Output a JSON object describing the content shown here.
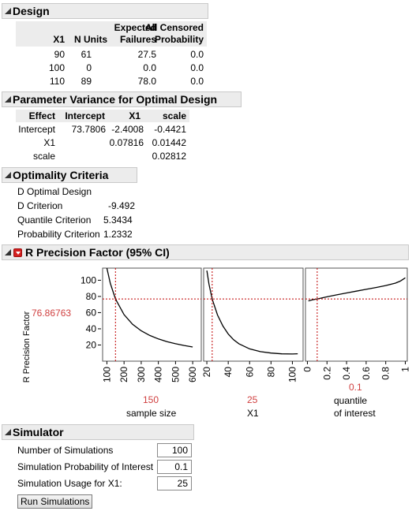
{
  "design": {
    "title": "Design",
    "columns": [
      "X1",
      "N Units",
      "Expected\nFailures",
      "All Censored\nProbability"
    ],
    "col_line1": [
      "",
      "",
      "Expected",
      "All Censored"
    ],
    "col_line2": [
      "X1",
      "N Units",
      "Failures",
      "Probability"
    ],
    "rows": [
      [
        "90",
        "61",
        "27.5",
        "0.0"
      ],
      [
        "100",
        "0",
        "0.0",
        "0.0"
      ],
      [
        "110",
        "89",
        "78.0",
        "0.0"
      ]
    ]
  },
  "param_variance": {
    "title": "Parameter Variance for Optimal Design",
    "columns": [
      "Effect",
      "Intercept",
      "X1",
      "scale"
    ],
    "rows": [
      [
        "Intercept",
        "73.7806",
        "-2.4008",
        "-0.4421"
      ],
      [
        "X1",
        "",
        "0.07816",
        "0.01442"
      ],
      [
        "scale",
        "",
        "",
        "0.02812"
      ]
    ]
  },
  "optimality": {
    "title": "Optimality Criteria",
    "subtitle": "D Optimal Design",
    "rows": [
      {
        "label": "D Criterion",
        "value": "-9.492"
      },
      {
        "label": "Quantile Criterion",
        "value": "5.3434"
      },
      {
        "label": "Probability Criterion",
        "value": "1.2332"
      }
    ]
  },
  "precision": {
    "title": "R Precision Factor (95% CI)",
    "ylabel": "R Precision Factor",
    "current_value": "76.86763"
  },
  "chart_data": {
    "type": "line",
    "ylabel": "R Precision Factor",
    "ylim": [
      0,
      115
    ],
    "y_ticks": [
      "100",
      "80",
      "60",
      "40",
      "20"
    ],
    "current_y": 76.86763,
    "colors": {
      "curve": "#000000",
      "crosshair": "#c00000",
      "current_label": "#d04040"
    },
    "panels": [
      {
        "xlabel": "sample size",
        "current_x_label": "150",
        "current_x": 150,
        "xlim": [
          75,
          650
        ],
        "x_ticks": [
          "100",
          "200",
          "300",
          "400",
          "500",
          "600"
        ],
        "x_tick_values": [
          100,
          200,
          300,
          400,
          500,
          600
        ],
        "curve": {
          "x": [
            100,
            120,
            150,
            200,
            250,
            300,
            350,
            400,
            450,
            500,
            550,
            600
          ],
          "y": [
            118,
            96,
            76.9,
            57.5,
            45.5,
            37.5,
            31.8,
            27.5,
            24.2,
            21.5,
            19.4,
            17.5
          ]
        }
      },
      {
        "xlabel": "X1",
        "current_x_label": "25",
        "current_x": 25,
        "xlim": [
          17,
          110
        ],
        "x_ticks": [
          "20",
          "40",
          "60",
          "80",
          "100"
        ],
        "x_tick_values": [
          20,
          40,
          60,
          80,
          100
        ],
        "curve": {
          "x": [
            20,
            22,
            25,
            30,
            35,
            40,
            45,
            50,
            60,
            70,
            80,
            90,
            100,
            105
          ],
          "y": [
            112,
            95,
            76.9,
            57,
            43.5,
            33.5,
            26.5,
            21.5,
            15.2,
            11.8,
            10,
            9.1,
            8.9,
            9.2
          ]
        }
      },
      {
        "xlabel": "quantile\nof interest",
        "xlabel_line1": "quantile",
        "xlabel_line2": "of interest",
        "current_x_label": "0.1",
        "current_x": 0.1,
        "xlim": [
          -0.02,
          1.02
        ],
        "x_ticks": [
          "0",
          "0.2",
          "0.4",
          "0.6",
          "0.8",
          "1"
        ],
        "x_tick_values": [
          0,
          0.2,
          0.4,
          0.6,
          0.8,
          1
        ],
        "curve": {
          "x": [
            0.01,
            0.05,
            0.1,
            0.2,
            0.3,
            0.4,
            0.5,
            0.6,
            0.7,
            0.8,
            0.9,
            0.95,
            1.0
          ],
          "y": [
            74.5,
            75.8,
            76.9,
            79.5,
            82,
            84.3,
            86.5,
            88.8,
            91,
            93.5,
            96.5,
            99,
            103
          ]
        }
      }
    ]
  },
  "simulator": {
    "title": "Simulator",
    "fields": [
      {
        "label": "Number of Simulations",
        "value": "100"
      },
      {
        "label": "Simulation Probability of Interest",
        "value": "0.1"
      },
      {
        "label": "Simulation Usage for X1:",
        "value": "25"
      }
    ],
    "run_button": "Run Simulations"
  }
}
